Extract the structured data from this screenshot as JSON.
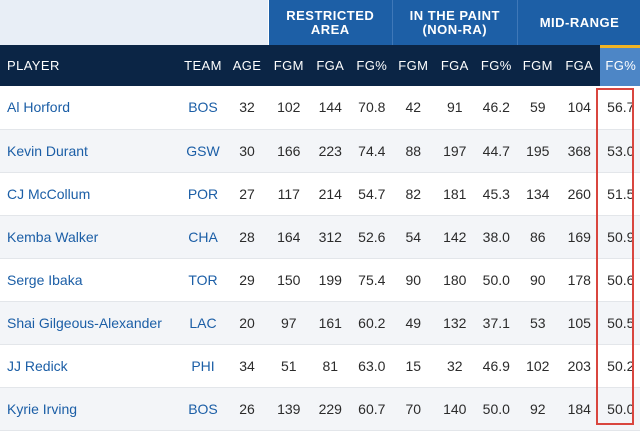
{
  "groups": {
    "restricted_area": "RESTRICTED AREA",
    "in_the_paint_line1": "IN THE PAINT",
    "in_the_paint_line2": "(NON-RA)",
    "mid_range": "MID-RANGE"
  },
  "columns": [
    "PLAYER",
    "TEAM",
    "AGE",
    "FGM",
    "FGA",
    "FG%",
    "FGM",
    "FGA",
    "FG%",
    "FGM",
    "FGA",
    "FG%"
  ],
  "rows": [
    [
      "Al Horford",
      "BOS",
      "32",
      "102",
      "144",
      "70.8",
      "42",
      "91",
      "46.2",
      "59",
      "104",
      "56.7"
    ],
    [
      "Kevin Durant",
      "GSW",
      "30",
      "166",
      "223",
      "74.4",
      "88",
      "197",
      "44.7",
      "195",
      "368",
      "53.0"
    ],
    [
      "CJ McCollum",
      "POR",
      "27",
      "117",
      "214",
      "54.7",
      "82",
      "181",
      "45.3",
      "134",
      "260",
      "51.5"
    ],
    [
      "Kemba Walker",
      "CHA",
      "28",
      "164",
      "312",
      "52.6",
      "54",
      "142",
      "38.0",
      "86",
      "169",
      "50.9"
    ],
    [
      "Serge Ibaka",
      "TOR",
      "29",
      "150",
      "199",
      "75.4",
      "90",
      "180",
      "50.0",
      "90",
      "178",
      "50.6"
    ],
    [
      "Shai Gilgeous-Alexander",
      "LAC",
      "20",
      "97",
      "161",
      "60.2",
      "49",
      "132",
      "37.1",
      "53",
      "105",
      "50.5"
    ],
    [
      "JJ Redick",
      "PHI",
      "34",
      "51",
      "81",
      "63.0",
      "15",
      "32",
      "46.9",
      "102",
      "203",
      "50.2"
    ],
    [
      "Kyrie Irving",
      "BOS",
      "26",
      "139",
      "229",
      "60.7",
      "70",
      "140",
      "50.0",
      "92",
      "184",
      "50.0"
    ]
  ],
  "colors": {
    "group_header": "#1d5fa6",
    "column_header": "#0b2545",
    "sorted_column": "#4d86c6",
    "sort_indicator": "#f0b323",
    "link": "#1b5ea6",
    "highlight_box": "#d9463f"
  }
}
